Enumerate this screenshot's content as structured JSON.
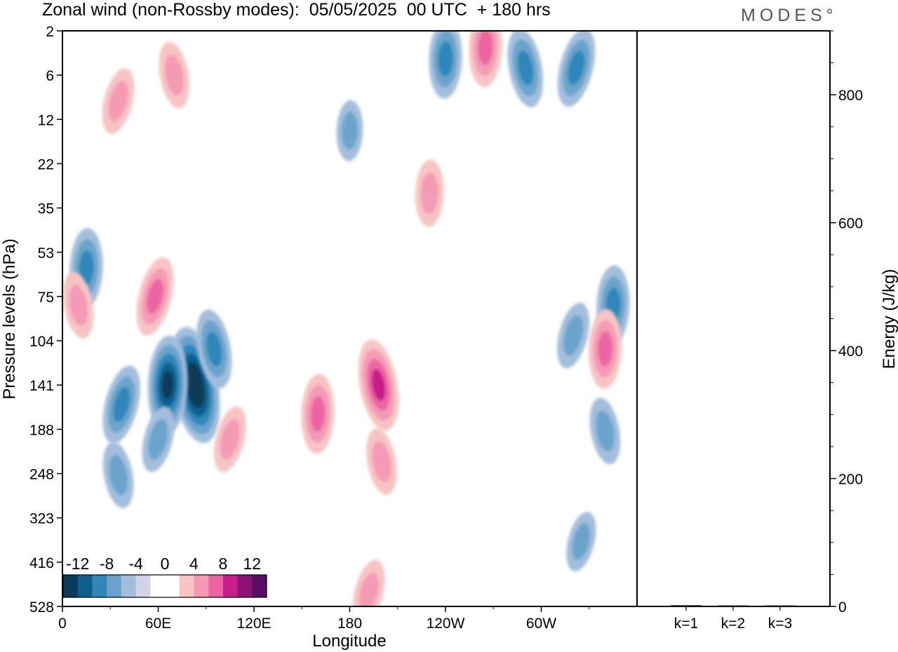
{
  "header": {
    "title": "Zonal wind (non-Rossby modes):  05/05/2025  00 UTC  + 180 hrs",
    "brand": "MODES°"
  },
  "colors": {
    "neg": [
      "#0d3a59",
      "#0f5f8e",
      "#2f86bb",
      "#6aa4cc",
      "#a3bedc",
      "#d0d4e6"
    ],
    "zero": "#ffffff",
    "pos": [
      "#f7c4c4",
      "#f59ab5",
      "#ec65a0",
      "#c81e8c",
      "#8c1276",
      "#570e64"
    ]
  },
  "chart_data": [
    {
      "type": "heatmap",
      "xlabel": "Longitude",
      "ylabel": "Pressure levels (hPa)",
      "x_ticks": [
        "0",
        "60E",
        "120E",
        "180",
        "120W",
        "60W"
      ],
      "y_ticks": [
        "2",
        "6",
        "12",
        "22",
        "35",
        "53",
        "75",
        "104",
        "141",
        "188",
        "248",
        "323",
        "416",
        "528"
      ],
      "colorbar": {
        "labels": [
          "-12",
          "-8",
          "-4",
          "0",
          "4",
          "8",
          "12"
        ],
        "levels": [
          -12,
          -10,
          -8,
          -6,
          -4,
          -2,
          2,
          4,
          6,
          8,
          10,
          12
        ]
      },
      "features": [
        {
          "lon": 83,
          "level": 141,
          "value": -12
        },
        {
          "lon": 66,
          "level": 141,
          "value": -9
        },
        {
          "lon": 37,
          "level": 160,
          "value": -6
        },
        {
          "lon": 95,
          "level": 110,
          "value": -6
        },
        {
          "lon": 15,
          "level": 60,
          "value": -6
        },
        {
          "lon": 60,
          "level": 200,
          "value": -4
        },
        {
          "lon": 35,
          "level": 250,
          "value": -4
        },
        {
          "lon": 240,
          "level": 4,
          "value": -6
        },
        {
          "lon": 322,
          "level": 5,
          "value": -6
        },
        {
          "lon": 290,
          "level": 5,
          "value": -6
        },
        {
          "lon": 345,
          "level": 80,
          "value": -6
        },
        {
          "lon": 320,
          "level": 100,
          "value": -4
        },
        {
          "lon": 340,
          "level": 190,
          "value": -4
        },
        {
          "lon": 180,
          "level": 14,
          "value": -3
        },
        {
          "lon": 325,
          "level": 370,
          "value": -3
        },
        {
          "lon": 198,
          "level": 141,
          "value": 8
        },
        {
          "lon": 160,
          "level": 170,
          "value": 6
        },
        {
          "lon": 105,
          "level": 200,
          "value": 4
        },
        {
          "lon": 200,
          "level": 230,
          "value": 4
        },
        {
          "lon": 340,
          "level": 110,
          "value": 6
        },
        {
          "lon": 58,
          "level": 75,
          "value": 6
        },
        {
          "lon": 10,
          "level": 80,
          "value": 4
        },
        {
          "lon": 265,
          "level": 3,
          "value": 6
        },
        {
          "lon": 35,
          "level": 9,
          "value": 4
        },
        {
          "lon": 70,
          "level": 6,
          "value": 4
        },
        {
          "lon": 230,
          "level": 30,
          "value": 4
        },
        {
          "lon": 192,
          "level": 490,
          "value": 4
        }
      ]
    },
    {
      "type": "bar",
      "categories": [
        "k=1",
        "k=2",
        "k=3"
      ],
      "values": [
        2,
        1,
        0.5
      ],
      "ylabel": "Energy (J/kg)",
      "ylim": [
        0,
        900
      ],
      "y_ticks": [
        0,
        200,
        400,
        600,
        800
      ]
    }
  ]
}
